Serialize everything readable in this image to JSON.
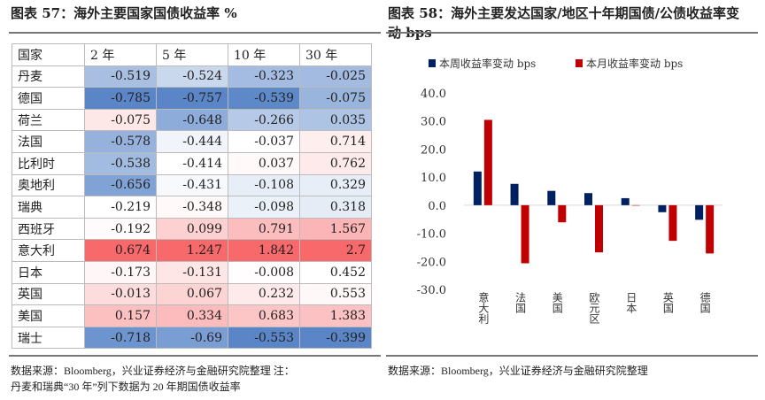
{
  "left": {
    "title": "图表 57：海外主要国家国债收益率  %",
    "columns": [
      "国家",
      "2 年",
      "5 年",
      "10 年",
      "30 年"
    ],
    "rows": [
      {
        "country": "丹麦",
        "values": [
          "-0.519",
          "-0.524",
          "-0.323",
          "-0.025"
        ]
      },
      {
        "country": "德国",
        "values": [
          "-0.785",
          "-0.757",
          "-0.539",
          "-0.075"
        ]
      },
      {
        "country": "荷兰",
        "values": [
          "-0.075",
          "-0.648",
          "-0.266",
          "0.035"
        ]
      },
      {
        "country": "法国",
        "values": [
          "-0.578",
          "-0.444",
          "-0.037",
          "0.714"
        ]
      },
      {
        "country": "比利时",
        "values": [
          "-0.538",
          "-0.414",
          "0.037",
          "0.762"
        ]
      },
      {
        "country": "奥地利",
        "values": [
          "-0.656",
          "-0.431",
          "-0.108",
          "0.329"
        ]
      },
      {
        "country": "瑞典",
        "values": [
          "-0.219",
          "-0.348",
          "-0.098",
          "0.318"
        ]
      },
      {
        "country": "西班牙",
        "values": [
          "-0.192",
          "0.099",
          "0.791",
          "1.567"
        ]
      },
      {
        "country": "意大利",
        "values": [
          "0.674",
          "1.247",
          "1.842",
          "2.7"
        ]
      },
      {
        "country": "日本",
        "values": [
          "-0.173",
          "-0.131",
          "-0.008",
          "0.452"
        ]
      },
      {
        "country": "英国",
        "values": [
          "-0.013",
          "0.067",
          "0.232",
          "0.553"
        ]
      },
      {
        "country": "美国",
        "values": [
          "0.157",
          "0.334",
          "0.683",
          "1.383"
        ]
      },
      {
        "country": "瑞士",
        "values": [
          "-0.718",
          "-0.69",
          "-0.553",
          "-0.399"
        ]
      }
    ],
    "colors": {
      "low": "#5a86c8",
      "mid": "#ffffff",
      "high": "#f8696b"
    },
    "source": "数据来源：Bloomberg，兴业证券经济与金融研究院整理  注：",
    "note": "丹麦和瑞典“30 年”列下数据为 20 年期国债收益率"
  },
  "right": {
    "title": "图表 58：海外主要发达国家/地区十年期国债/公债收益率变动 bps",
    "source": "数据来源：Bloomberg，兴业证券经济与金融研究院整理"
  },
  "chart_data": {
    "type": "bar",
    "categories": [
      "意大利",
      "法国",
      "美国",
      "欧元区",
      "日本",
      "英国",
      "德国"
    ],
    "series": [
      {
        "name": "本周收益率变动 bps",
        "color": "#002060",
        "values": [
          12.0,
          7.6,
          5.1,
          4.3,
          2.5,
          -2.5,
          -5.2
        ]
      },
      {
        "name": "本月收益率变动 bps",
        "color": "#c00000",
        "values": [
          30.4,
          -20.7,
          -6.1,
          -16.8,
          0.0,
          -12.7,
          -17.2
        ]
      }
    ],
    "yticks": [
      "40.0",
      "30.0",
      "20.0",
      "10.0",
      "0.0",
      "-10.0",
      "-20.0",
      "-30.0"
    ],
    "ylim": [
      -30,
      40
    ],
    "legend": "top",
    "grid": false
  }
}
